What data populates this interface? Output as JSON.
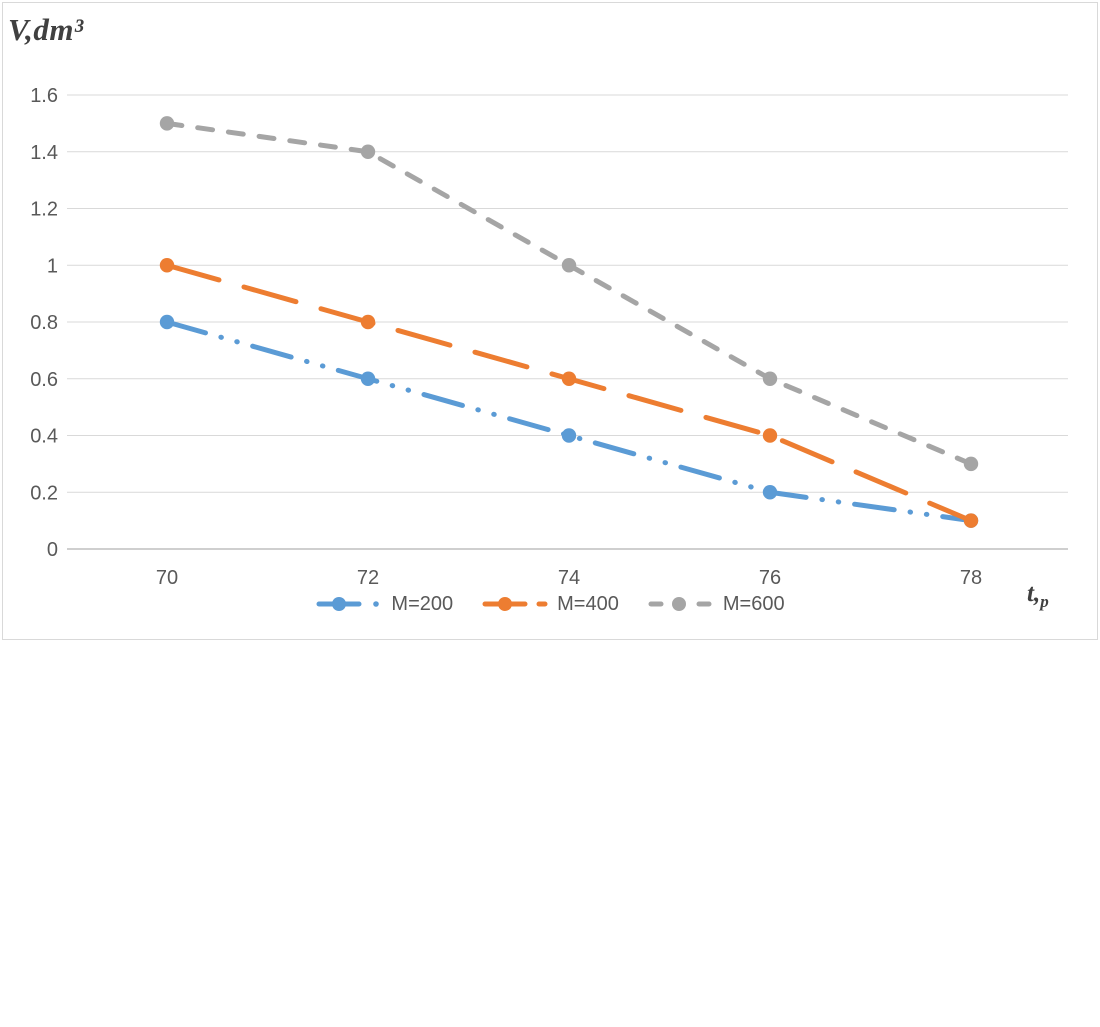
{
  "chart_data": {
    "type": "line",
    "title": "V,dm³",
    "xlabel": {
      "main": "t,",
      "sub": "p"
    },
    "categories": [
      "70",
      "72",
      "74",
      "76",
      "78"
    ],
    "series": [
      {
        "name": "M=200",
        "values": [
          0.8,
          0.6,
          0.4,
          0.2,
          0.1
        ],
        "color": "#5B9BD5",
        "dash": "long-dash-dot-dot"
      },
      {
        "name": "M=400",
        "values": [
          1.0,
          0.8,
          0.6,
          0.4,
          0.1
        ],
        "color": "#ED7D31",
        "dash": "long-dash"
      },
      {
        "name": "M=600",
        "values": [
          1.5,
          1.4,
          1.0,
          0.6,
          0.3
        ],
        "color": "#A5A5A5",
        "dash": "dash"
      }
    ],
    "yticks": [
      {
        "v": 0,
        "label": "0"
      },
      {
        "v": 0.2,
        "label": "0.2"
      },
      {
        "v": 0.4,
        "label": "0.4"
      },
      {
        "v": 0.6,
        "label": "0.6"
      },
      {
        "v": 0.8,
        "label": "0.8"
      },
      {
        "v": 1,
        "label": "1"
      },
      {
        "v": 1.2,
        "label": "1.2"
      },
      {
        "v": 1.4,
        "label": "1.4"
      },
      {
        "v": 1.6,
        "label": "1.6"
      }
    ],
    "ylim": [
      0,
      1.6
    ],
    "grid": true,
    "legend_position": "bottom",
    "colors": {
      "gridline": "#D9D9D9",
      "axis_line": "#BFBFBF",
      "tick_text": "#595959",
      "title_text": "#404040",
      "frame_border": "#D9D9D9",
      "background": "#FFFFFF"
    }
  }
}
